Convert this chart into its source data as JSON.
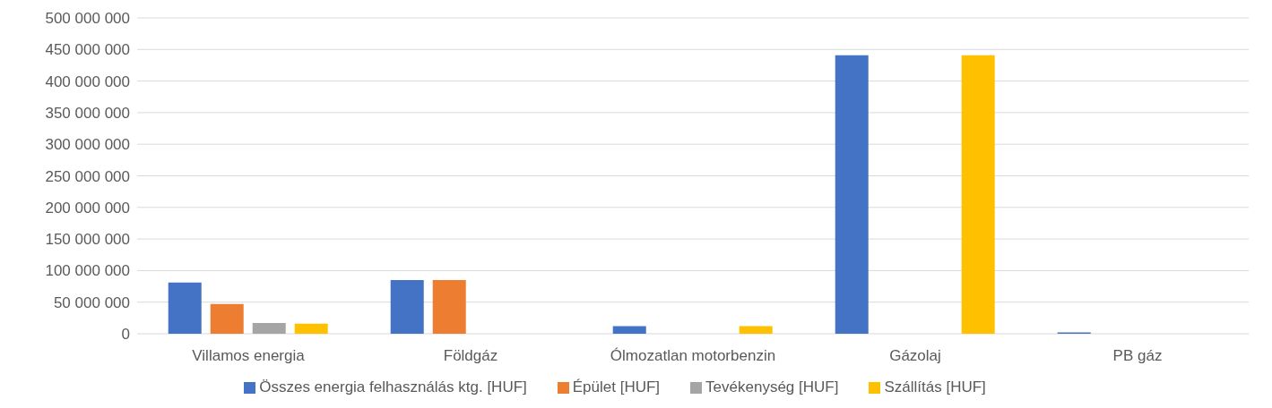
{
  "chart_data": {
    "type": "bar",
    "categories": [
      "Villamos energia",
      "Földgáz",
      "Ólmozatlan motorbenzin",
      "Gázolaj",
      "PB gáz"
    ],
    "series": [
      {
        "name": "Összes energia felhasználás ktg. [HUF]",
        "color": "#4472c4",
        "values": [
          81000000,
          85000000,
          12000000,
          441000000,
          2000000
        ]
      },
      {
        "name": "Épület [HUF]",
        "color": "#ed7d31",
        "values": [
          47000000,
          85000000,
          0,
          0,
          0
        ]
      },
      {
        "name": "Tevékenység [HUF]",
        "color": "#a5a5a5",
        "values": [
          17000000,
          0,
          0,
          0,
          0
        ]
      },
      {
        "name": "Szállítás [HUF]",
        "color": "#ffc000",
        "values": [
          16000000,
          0,
          12000000,
          441000000,
          0
        ]
      }
    ],
    "ylim": [
      0,
      500000000
    ],
    "yticks": [
      {
        "value": 0,
        "label": "0"
      },
      {
        "value": 50000000,
        "label": "50 000 000"
      },
      {
        "value": 100000000,
        "label": "100 000 000"
      },
      {
        "value": 150000000,
        "label": "150 000 000"
      },
      {
        "value": 200000000,
        "label": "200 000 000"
      },
      {
        "value": 250000000,
        "label": "250 000 000"
      },
      {
        "value": 300000000,
        "label": "300 000 000"
      },
      {
        "value": 350000000,
        "label": "350 000 000"
      },
      {
        "value": 400000000,
        "label": "400 000 000"
      },
      {
        "value": 450000000,
        "label": "450 000 000"
      },
      {
        "value": 500000000,
        "label": "500 000 000"
      }
    ],
    "grid": "y",
    "legend": "bottom"
  }
}
